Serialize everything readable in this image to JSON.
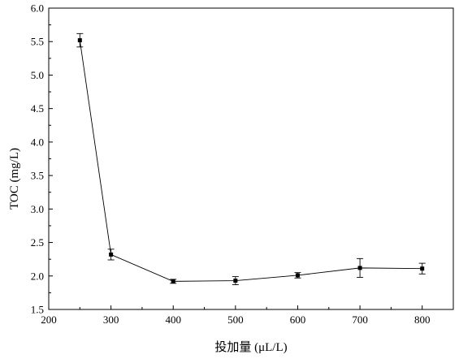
{
  "chart_data": {
    "type": "line",
    "title": "",
    "xlabel": "投加量 (μL/L)",
    "ylabel": "TOC (mg/L)",
    "xlim": [
      200,
      850
    ],
    "ylim": [
      1.5,
      6.0
    ],
    "xticks": [
      200,
      300,
      400,
      500,
      600,
      700,
      800
    ],
    "yticks": [
      1.5,
      2.0,
      2.5,
      3.0,
      3.5,
      4.0,
      4.5,
      5.0,
      5.5,
      6.0
    ],
    "xtick_labels": [
      "200",
      "300",
      "400",
      "500",
      "600",
      "700",
      "800"
    ],
    "ytick_labels": [
      "1.5",
      "2.0",
      "2.5",
      "3.0",
      "3.5",
      "4.0",
      "4.5",
      "5.0",
      "5.5",
      "6.0"
    ],
    "grid": false,
    "legend": "none",
    "series": [
      {
        "x": [
          250,
          300,
          400,
          500,
          600,
          700,
          800
        ],
        "y": [
          5.52,
          2.32,
          1.92,
          1.93,
          2.01,
          2.12,
          2.11
        ],
        "error": [
          0.1,
          0.08,
          0.03,
          0.06,
          0.04,
          0.14,
          0.08
        ],
        "marker": "square",
        "color": "#000000"
      }
    ]
  }
}
